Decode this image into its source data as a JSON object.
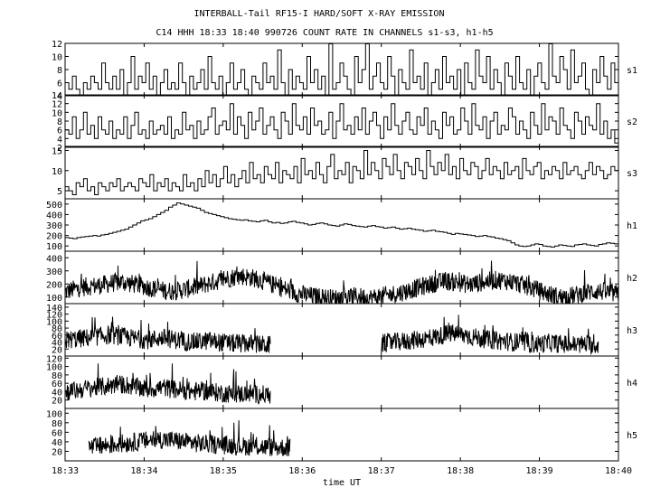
{
  "header": {
    "title": "INTERBALL-Tail RF15-I HARD/SOFT X-RAY EMISSION",
    "subtitle": "C14 HHH 18:33 18:40 990726  COUNT RATE IN CHANNELS s1-s3, h1-h5"
  },
  "chart_data": {
    "type": "line",
    "title": "INTERBALL-Tail RF15-I HARD/SOFT X-RAY EMISSION",
    "subtitle": "C14 HHH 18:33 18:40 990726  COUNT RATE IN CHANNELS s1-s3, h1-h5",
    "xlabel": "time UT",
    "x_ticks": [
      "18:33",
      "18:34",
      "18:35",
      "18:36",
      "18:37",
      "18:38",
      "18:39",
      "18:40"
    ],
    "x_range_minutes": [
      0,
      7
    ],
    "grid": false,
    "panels": [
      {
        "name": "s1",
        "ylim": [
          4,
          12
        ],
        "y_ticks": [
          4,
          6,
          8,
          10,
          12
        ],
        "render": "step",
        "values": [
          6,
          5,
          7,
          5,
          4,
          6,
          5,
          7,
          6,
          5,
          9,
          6,
          5,
          7,
          5,
          8,
          4,
          6,
          10,
          5,
          7,
          6,
          9,
          5,
          7,
          4,
          6,
          8,
          5,
          6,
          5,
          9,
          6,
          4,
          7,
          5,
          6,
          8,
          5,
          10,
          6,
          5,
          7,
          4,
          6,
          9,
          5,
          6,
          8,
          5,
          4,
          7,
          6,
          5,
          9,
          6,
          7,
          5,
          11,
          6,
          4,
          8,
          5,
          7,
          6,
          5,
          10,
          6,
          8,
          5,
          7,
          4,
          12,
          5,
          6,
          9,
          7,
          5,
          4,
          10,
          6,
          8,
          12,
          5,
          7,
          9,
          6,
          5,
          10,
          7,
          4,
          8,
          6,
          5,
          11,
          6,
          7,
          5,
          9,
          4,
          6,
          8,
          5,
          10,
          6,
          7,
          5,
          8,
          4,
          9,
          6,
          5,
          11,
          7,
          6,
          10,
          5,
          8,
          6,
          4,
          9,
          7,
          5,
          10,
          6,
          5,
          8,
          4,
          7,
          9,
          6,
          5,
          12,
          7,
          6,
          10,
          8,
          5,
          11,
          6,
          7,
          9,
          5,
          4,
          8,
          6,
          10,
          7,
          5,
          9,
          6
        ]
      },
      {
        "name": "s2",
        "ylim": [
          2,
          14
        ],
        "y_ticks": [
          2,
          4,
          6,
          8,
          10,
          12,
          14
        ],
        "render": "step",
        "values": [
          6,
          5,
          9,
          4,
          6,
          10,
          5,
          7,
          4,
          9,
          6,
          5,
          8,
          4,
          6,
          5,
          9,
          4,
          7,
          10,
          5,
          6,
          4,
          8,
          5,
          6,
          7,
          5,
          9,
          4,
          6,
          5,
          10,
          6,
          7,
          4,
          8,
          5,
          6,
          9,
          11,
          5,
          7,
          8,
          6,
          12,
          5,
          9,
          7,
          4,
          10,
          6,
          8,
          11,
          5,
          7,
          9,
          6,
          4,
          10,
          8,
          5,
          12,
          7,
          6,
          9,
          5,
          11,
          7,
          8,
          5,
          6,
          10,
          4,
          8,
          12,
          6,
          7,
          5,
          9,
          6,
          11,
          5,
          8,
          10,
          7,
          4,
          9,
          6,
          12,
          7,
          5,
          8,
          10,
          6,
          5,
          9,
          7,
          11,
          5,
          8,
          6,
          4,
          10,
          7,
          9,
          5,
          6,
          11,
          8,
          5,
          12,
          7,
          6,
          9,
          4,
          8,
          10,
          5,
          7,
          6,
          11,
          9,
          5,
          8,
          6,
          4,
          10,
          7,
          5,
          12,
          6,
          9,
          8,
          5,
          11,
          7,
          6,
          4,
          10,
          8,
          5,
          9,
          7,
          6,
          12,
          5,
          8,
          4,
          6,
          3
        ]
      },
      {
        "name": "s3",
        "ylim": [
          3,
          16
        ],
        "y_ticks": [
          5,
          10,
          15
        ],
        "render": "step",
        "values": [
          6,
          5,
          4,
          7,
          6,
          8,
          5,
          6,
          4,
          7,
          6,
          5,
          7,
          6,
          8,
          5,
          6,
          7,
          6,
          5,
          8,
          7,
          6,
          9,
          5,
          7,
          6,
          8,
          5,
          7,
          6,
          5,
          9,
          6,
          7,
          5,
          8,
          6,
          10,
          7,
          9,
          6,
          8,
          11,
          7,
          9,
          6,
          8,
          10,
          7,
          12,
          8,
          9,
          7,
          11,
          9,
          8,
          12,
          7,
          10,
          9,
          8,
          11,
          7,
          13,
          9,
          10,
          8,
          12,
          9,
          7,
          11,
          14,
          8,
          10,
          9,
          12,
          7,
          11,
          10,
          8,
          15,
          9,
          12,
          10,
          8,
          13,
          11,
          9,
          14,
          10,
          8,
          12,
          11,
          9,
          13,
          10,
          8,
          15,
          11,
          9,
          12,
          10,
          14,
          9,
          11,
          8,
          13,
          10,
          9,
          12,
          11,
          8,
          10,
          13,
          9,
          11,
          10,
          8,
          12,
          9,
          10,
          11,
          8,
          13,
          10,
          9,
          11,
          12,
          8,
          10,
          9,
          11,
          10,
          8,
          12,
          9,
          10,
          11,
          9,
          8,
          10,
          12,
          9,
          11,
          10,
          8,
          9,
          11,
          10
        ]
      },
      {
        "name": "h1",
        "ylim": [
          50,
          550
        ],
        "y_ticks": [
          100,
          200,
          300,
          400,
          500
        ],
        "render": "step",
        "values": [
          180,
          175,
          170,
          180,
          185,
          190,
          195,
          200,
          195,
          205,
          210,
          220,
          230,
          240,
          250,
          260,
          280,
          300,
          320,
          340,
          350,
          360,
          380,
          400,
          420,
          440,
          470,
          490,
          510,
          500,
          490,
          480,
          470,
          460,
          440,
          420,
          410,
          400,
          390,
          380,
          370,
          360,
          355,
          350,
          345,
          350,
          340,
          335,
          330,
          340,
          345,
          330,
          320,
          325,
          315,
          320,
          330,
          335,
          325,
          320,
          310,
          300,
          305,
          315,
          320,
          310,
          300,
          295,
          290,
          300,
          310,
          305,
          295,
          290,
          285,
          280,
          290,
          295,
          285,
          280,
          270,
          275,
          280,
          270,
          260,
          265,
          270,
          260,
          255,
          250,
          240,
          245,
          250,
          240,
          235,
          230,
          220,
          210,
          220,
          215,
          210,
          205,
          200,
          190,
          195,
          200,
          190,
          185,
          175,
          170,
          160,
          150,
          130,
          110,
          100,
          95,
          100,
          110,
          120,
          115,
          100,
          95,
          90,
          100,
          110,
          105,
          100,
          95,
          110,
          115,
          120,
          110,
          105,
          100,
          115,
          120,
          130,
          125,
          120
        ]
      },
      {
        "name": "h2",
        "ylim": [
          50,
          450
        ],
        "y_ticks": [
          100,
          200,
          300,
          400
        ],
        "render": "noisy",
        "data_start_min": 0,
        "data_end_min": 7,
        "values": [
          140,
          155,
          170,
          180,
          185,
          190,
          200,
          210,
          215,
          205,
          195,
          185,
          170,
          160,
          150,
          145,
          150,
          160,
          170,
          185,
          200,
          215,
          230,
          245,
          255,
          260,
          250,
          240,
          220,
          200,
          180,
          160,
          140,
          125,
          115,
          105,
          100,
          95,
          90,
          95,
          100,
          105,
          100,
          95,
          100,
          110,
          120,
          130,
          145,
          160,
          175,
          190,
          205,
          215,
          220,
          215,
          205,
          195,
          205,
          215,
          225,
          230,
          225,
          215,
          200,
          185,
          165,
          145,
          125,
          110,
          100,
          105,
          115,
          130,
          140,
          145,
          140,
          130,
          120
        ]
      },
      {
        "name": "h3",
        "ylim": [
          0,
          150
        ],
        "y_ticks": [
          20,
          40,
          60,
          80,
          100,
          120,
          140
        ],
        "render": "noisy",
        "segments": [
          {
            "start_min": 0.0,
            "end_min": 2.6,
            "values": [
              45,
              48,
              50,
              52,
              55,
              58,
              60,
              57,
              54,
              50,
              48,
              46,
              50,
              52,
              48,
              45,
              42,
              40,
              42,
              44,
              40,
              38,
              36,
              35,
              36,
              34,
              32,
              30
            ]
          },
          {
            "start_min": 4.0,
            "end_min": 6.75,
            "values": [
              35,
              38,
              40,
              42,
              45,
              48,
              50,
              55,
              60,
              65,
              62,
              58,
              54,
              50,
              46,
              44,
              42,
              40,
              38,
              36,
              34,
              36,
              38,
              35,
              33,
              32,
              34,
              33,
              31
            ]
          }
        ]
      },
      {
        "name": "h4",
        "ylim": [
          0,
          125
        ],
        "y_ticks": [
          20,
          40,
          60,
          80,
          100,
          120
        ],
        "render": "noisy",
        "segments": [
          {
            "start_min": 0.0,
            "end_min": 2.6,
            "values": [
              40,
              42,
              45,
              48,
              50,
              52,
              55,
              58,
              56,
              52,
              48,
              46,
              48,
              50,
              46,
              44,
              42,
              40,
              42,
              40,
              38,
              36,
              35,
              34,
              36,
              34,
              33,
              32
            ]
          }
        ]
      },
      {
        "name": "h5",
        "ylim": [
          0,
          110
        ],
        "y_ticks": [
          20,
          40,
          60,
          80,
          100
        ],
        "render": "noisy",
        "segments": [
          {
            "start_min": 0.3,
            "end_min": 2.85,
            "values": [
              28,
              30,
              32,
              34,
              36,
              38,
              40,
              42,
              44,
              45,
              44,
              42,
              40,
              38,
              36,
              35,
              34,
              33,
              32,
              31,
              30,
              30,
              29,
              28,
              28,
              27
            ]
          }
        ]
      }
    ]
  }
}
